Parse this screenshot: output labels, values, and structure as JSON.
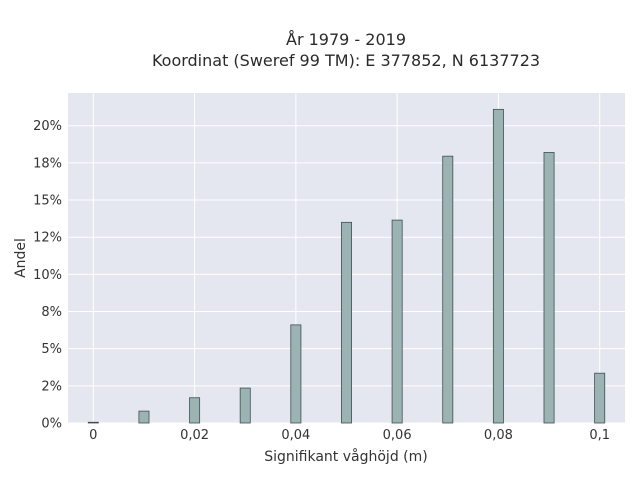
{
  "chart_data": {
    "type": "bar",
    "title_line1": "År 1979 - 2019",
    "title_line2": "Koordinat (Sweref 99 TM): E 377852, N 6137723",
    "xlabel": "Signifikant våghöjd (m)",
    "ylabel": "Andel",
    "x_ticks": [
      "0",
      "0,02",
      "0,04",
      "0,06",
      "0,08",
      "0,1"
    ],
    "x_tick_values": [
      0,
      0.02,
      0.04,
      0.06,
      0.08,
      0.1
    ],
    "y_ticks": [
      "0%",
      "2%",
      "5%",
      "8%",
      "10%",
      "12%",
      "15%",
      "18%",
      "20%"
    ],
    "y_tick_values": [
      0,
      2.5,
      5,
      7.5,
      10,
      12.5,
      15,
      17.5,
      20
    ],
    "xlim": [
      -0.005,
      0.105
    ],
    "ylim": [
      0,
      22.2
    ],
    "bin_width": 0.002,
    "x": [
      0,
      0.01,
      0.02,
      0.03,
      0.04,
      0.05,
      0.06,
      0.07,
      0.08,
      0.09,
      0.1
    ],
    "values": [
      0.05,
      0.8,
      1.7,
      2.35,
      6.6,
      13.5,
      13.65,
      17.95,
      21.1,
      18.2,
      3.35
    ],
    "grid": true,
    "colors": {
      "bar_fill": "#9cb3b3",
      "bar_stroke": "#3f4f4f",
      "plot_bg": "#e5e7f0",
      "grid": "#ffffff"
    }
  }
}
